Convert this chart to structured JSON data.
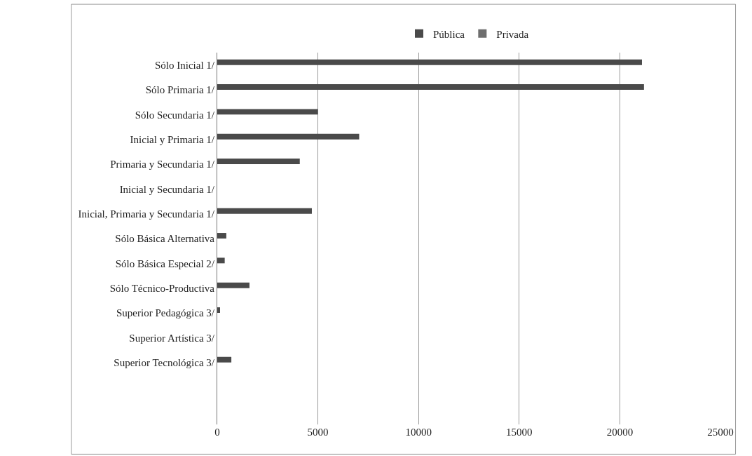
{
  "chart_data": {
    "type": "bar",
    "orientation": "horizontal",
    "categories": [
      "Sólo Inicial 1/",
      "Sólo Primaria 1/",
      "Sólo Secundaria 1/",
      "Inicial y Primaria 1/",
      "Primaria y Secundaria 1/",
      "Inicial y Secundaria 1/",
      "Inicial, Primaria y Secundaria 1/",
      "Sólo Básica Alternativa",
      "Sólo Básica Especial 2/",
      "Sólo Técnico-Productiva",
      "Superior Pedagógica 3/",
      "Superior Artística 3/",
      "Superior Tecnológica 3/"
    ],
    "series": [
      {
        "name": "Pública",
        "color": "#4a4a4a",
        "values": [
          21100,
          21200,
          5000,
          7050,
          4100,
          0,
          4700,
          450,
          370,
          1600,
          140,
          0,
          700
        ]
      },
      {
        "name": "Privada",
        "color": "#6e6e6e",
        "values": [
          null,
          null,
          null,
          null,
          null,
          null,
          null,
          null,
          null,
          null,
          null,
          null,
          null
        ]
      }
    ],
    "xlim": [
      0,
      25000
    ],
    "xticks": [
      0,
      5000,
      10000,
      15000,
      20000,
      25000
    ],
    "grid": "x",
    "legend": "top"
  }
}
